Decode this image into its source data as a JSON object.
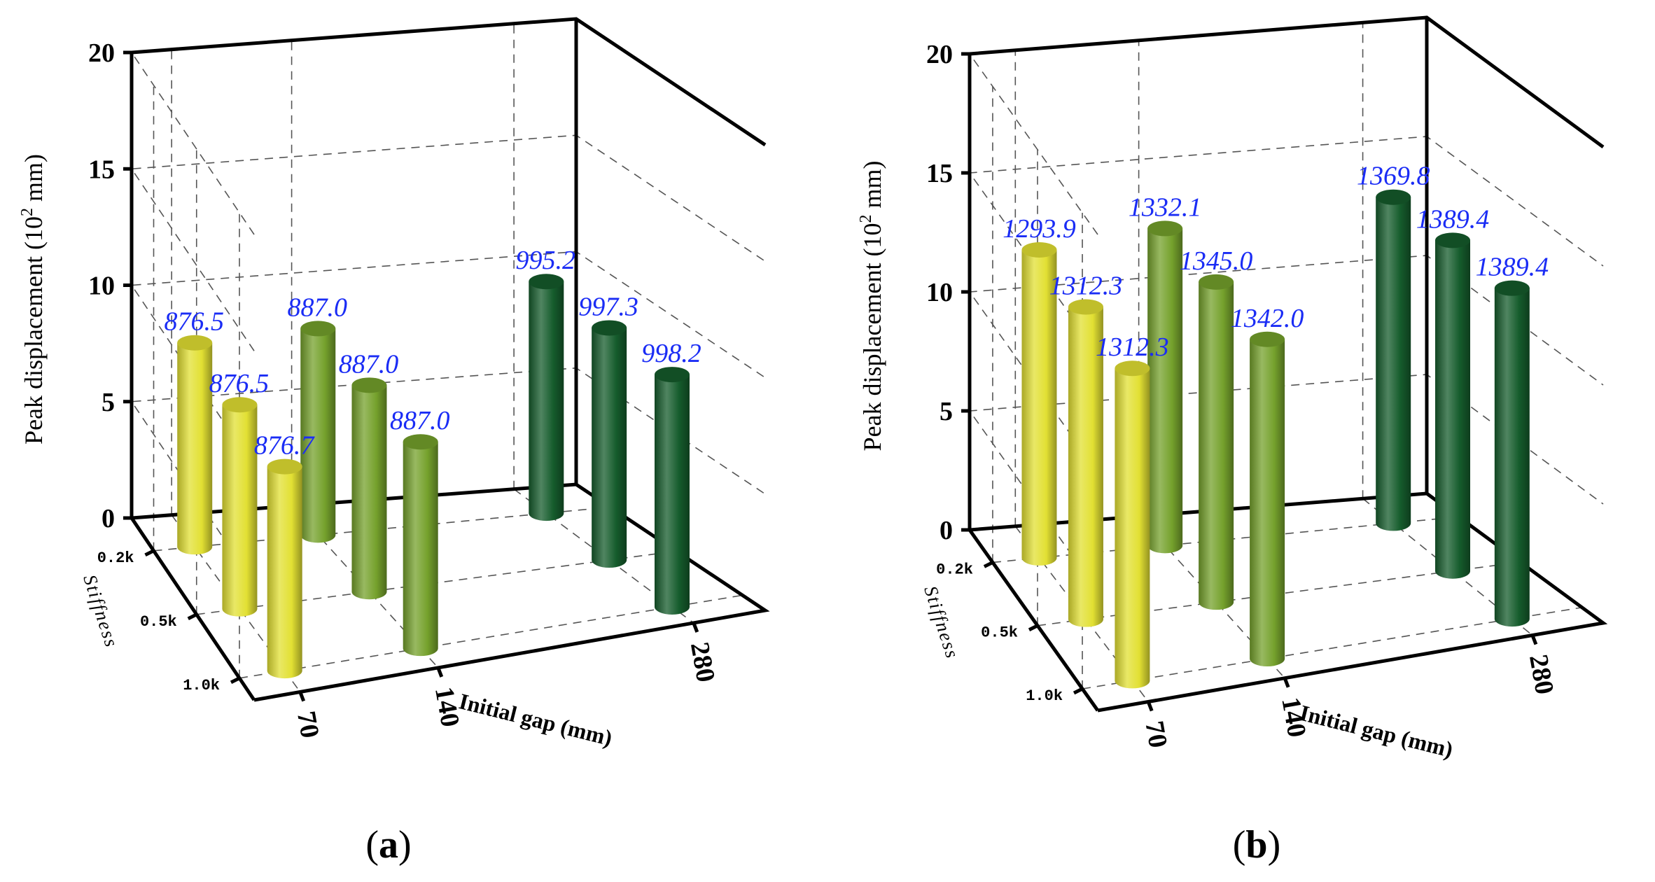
{
  "charts": [
    {
      "panel_label_letter": "a",
      "chart_data": {
        "type": "bar",
        "subtype": "3d-cylinder",
        "ylabel": "Peak displacement (10² mm)",
        "ylabel_main": "Peak displacement",
        "ylabel_unit_prefix": "(10",
        "ylabel_unit_exp": "2",
        "ylabel_unit_suffix": " mm)",
        "ylim": [
          0,
          20
        ],
        "yticks": [
          0,
          5,
          10,
          15,
          20
        ],
        "ytick_labels": [
          "0",
          "5",
          "10",
          "15",
          "20"
        ],
        "xlabel": "Initial gap (mm)",
        "x_categories": [
          "70",
          "140",
          "280"
        ],
        "zlabel": "Stiffness",
        "z_categories": [
          "0.2k",
          "0.5k",
          "1.0k"
        ],
        "grid": true,
        "series": [
          {
            "name": "70",
            "values": [
              8.765,
              8.765,
              8.767
            ],
            "labels": [
              "876.5",
              "876.5",
              "876.7"
            ],
            "color": "#e2e033"
          },
          {
            "name": "140",
            "values": [
              8.87,
              8.87,
              8.87
            ],
            "labels": [
              "887.0",
              "887.0",
              "887.0"
            ],
            "color": "#75a12c"
          },
          {
            "name": "280",
            "values": [
              9.952,
              9.973,
              9.982
            ],
            "labels": [
              "995.2",
              "997.3",
              "998.2"
            ],
            "color": "#155c2c"
          }
        ]
      }
    },
    {
      "panel_label_letter": "b",
      "chart_data": {
        "type": "bar",
        "subtype": "3d-cylinder",
        "ylabel": "Peak displacement (10² mm)",
        "ylabel_main": "Peak displacement",
        "ylabel_unit_prefix": "(10",
        "ylabel_unit_exp": "2",
        "ylabel_unit_suffix": " mm)",
        "ylim": [
          0,
          20
        ],
        "yticks": [
          0,
          5,
          10,
          15,
          20
        ],
        "ytick_labels": [
          "0",
          "5",
          "10",
          "15",
          "20"
        ],
        "xlabel": "Initial gap (mm)",
        "x_categories": [
          "70",
          "140",
          "280"
        ],
        "zlabel": "Stiffness",
        "z_categories": [
          "0.2k",
          "0.5k",
          "1.0k"
        ],
        "grid": true,
        "series": [
          {
            "name": "70",
            "values": [
              12.939,
              13.123,
              13.123
            ],
            "labels": [
              "1293.9",
              "1312.3",
              "1312.3"
            ],
            "color": "#e2e033"
          },
          {
            "name": "140",
            "values": [
              13.321,
              13.45,
              13.42
            ],
            "labels": [
              "1332.1",
              "1345.0",
              "1342.0"
            ],
            "color": "#75a12c"
          },
          {
            "name": "280",
            "values": [
              13.698,
              13.894,
              13.894
            ],
            "labels": [
              "1369.8",
              "1389.4",
              "1389.4"
            ],
            "color": "#155c2c"
          }
        ]
      }
    }
  ]
}
